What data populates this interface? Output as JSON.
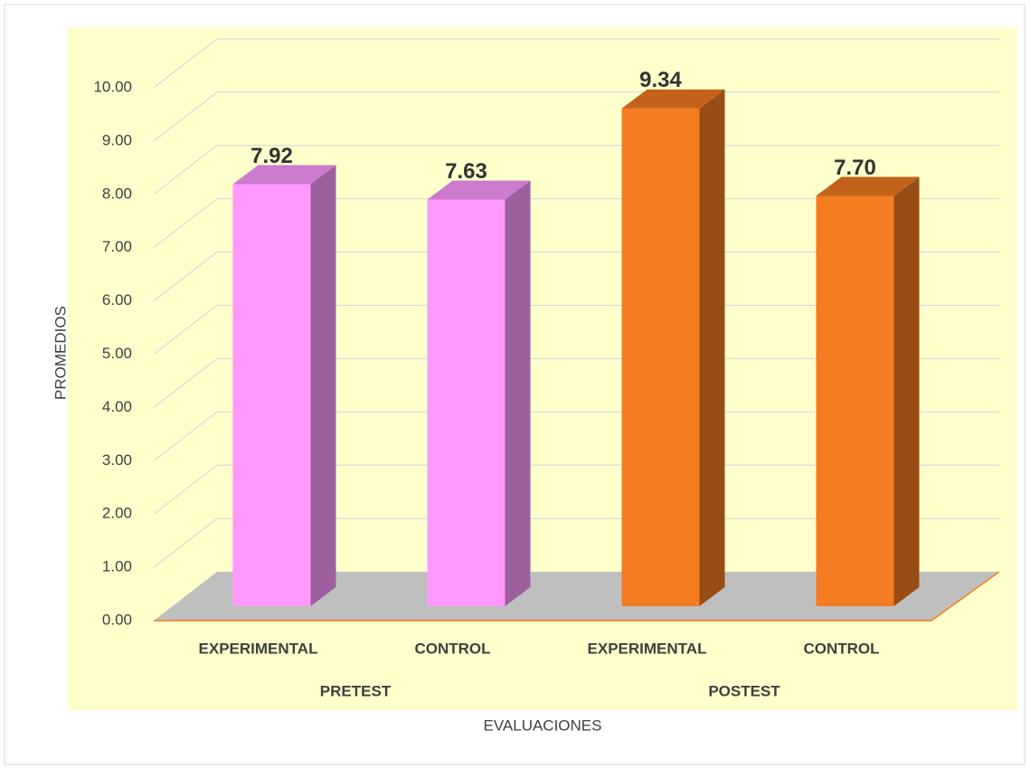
{
  "chart_data": {
    "type": "bar3d",
    "categories": [
      "EXPERIMENTAL",
      "CONTROL",
      "EXPERIMENTAL",
      "CONTROL"
    ],
    "groups": [
      {
        "name": "PRETEST",
        "span": 2
      },
      {
        "name": "POSTEST",
        "span": 2
      }
    ],
    "values": [
      7.92,
      7.63,
      9.34,
      7.7
    ],
    "value_labels": [
      "7.92",
      "7.63",
      "9.34",
      "7.70"
    ],
    "colors": [
      "#ff99ff",
      "#ff99ff",
      "#f47c20",
      "#f47c20"
    ],
    "xlabel": "EVALUACIONES",
    "ylabel": "PROMEDIOS",
    "ylim": [
      0,
      10
    ],
    "yticks": [
      {
        "value": 0,
        "label": "0.00"
      },
      {
        "value": 1,
        "label": "1.00"
      },
      {
        "value": 2,
        "label": "2.00"
      },
      {
        "value": 3,
        "label": "3.00"
      },
      {
        "value": 4,
        "label": "4.00"
      },
      {
        "value": 5,
        "label": "5.00"
      },
      {
        "value": 6,
        "label": "6.00"
      },
      {
        "value": 7,
        "label": "7.00"
      },
      {
        "value": 8,
        "label": "8.00"
      },
      {
        "value": 9,
        "label": "9.00"
      },
      {
        "value": 10,
        "label": "10.00"
      }
    ],
    "grid": true
  }
}
